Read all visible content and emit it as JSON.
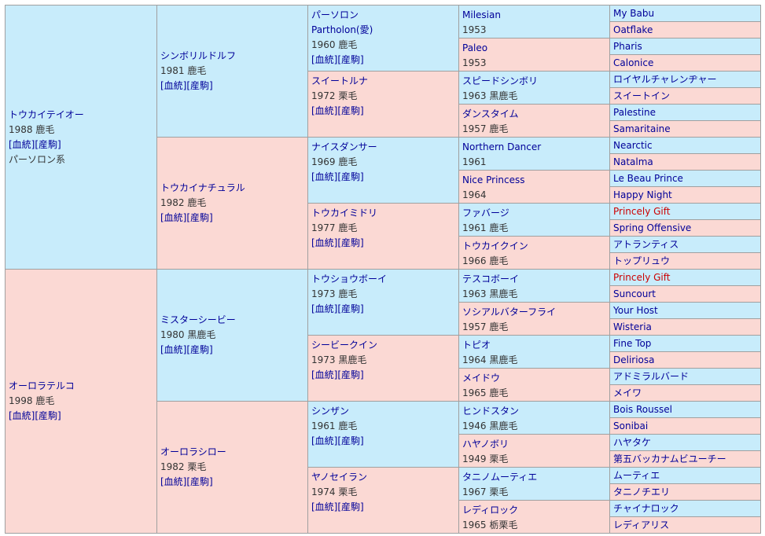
{
  "colors": {
    "male_bg": "#c8ecfb",
    "female_bg": "#fbd9d4",
    "link": "#000099",
    "highlight": "#cc0000",
    "border": "#a0a0a0"
  },
  "gen1": [
    {
      "name": "トウカイテイオー",
      "info": "1988 鹿毛",
      "links": "[血統][産駒]",
      "line": "パーソロン系",
      "sex": "m"
    },
    {
      "name": "オーロラテルコ",
      "info": "1998 鹿毛",
      "links": "[血統][産駒]",
      "sex": "f"
    }
  ],
  "gen2": [
    {
      "name": "シンボリルドルフ",
      "info": "1981 鹿毛",
      "links": "[血統][産駒]",
      "sex": "m"
    },
    {
      "name": "トウカイナチュラル",
      "info": "1982 鹿毛",
      "links": "[血統][産駒]",
      "sex": "f"
    },
    {
      "name": "ミスターシービー",
      "info": "1980 黒鹿毛",
      "links": "[血統][産駒]",
      "sex": "m"
    },
    {
      "name": "オーロラシロー",
      "info": "1982 栗毛",
      "links": "[血統][産駒]",
      "sex": "f"
    }
  ],
  "gen3": [
    {
      "name": "パーソロン",
      "alt": "Partholon(愛)",
      "info": "1960 鹿毛",
      "links": "[血統][産駒]",
      "sex": "m"
    },
    {
      "name": "スイートルナ",
      "info": "1972 栗毛",
      "links": "[血統][産駒]",
      "sex": "f"
    },
    {
      "name": "ナイスダンサー",
      "info": "1969 鹿毛",
      "links": "[血統][産駒]",
      "sex": "m"
    },
    {
      "name": "トウカイミドリ",
      "info": "1977 鹿毛",
      "links": "[血統][産駒]",
      "sex": "f"
    },
    {
      "name": "トウショウボーイ",
      "info": "1973 鹿毛",
      "links": "[血統][産駒]",
      "sex": "m"
    },
    {
      "name": "シービークイン",
      "info": "1973 黒鹿毛",
      "links": "[血統][産駒]",
      "sex": "f"
    },
    {
      "name": "シンザン",
      "info": "1961 鹿毛",
      "links": "[血統][産駒]",
      "sex": "m"
    },
    {
      "name": "ヤノセイラン",
      "info": "1974 栗毛",
      "links": "[血統][産駒]",
      "sex": "f"
    }
  ],
  "gen4": [
    {
      "name": "Milesian",
      "info": "1953",
      "sex": "m"
    },
    {
      "name": "Paleo",
      "info": "1953",
      "sex": "f"
    },
    {
      "name": "スピードシンボリ",
      "info": "1963 黒鹿毛",
      "sex": "m"
    },
    {
      "name": "ダンスタイム",
      "info": "1957 鹿毛",
      "sex": "f"
    },
    {
      "name": "Northern Dancer",
      "info": "1961",
      "sex": "m"
    },
    {
      "name": "Nice Princess",
      "info": "1964",
      "sex": "f"
    },
    {
      "name": "ファバージ",
      "info": "1961 鹿毛",
      "sex": "m"
    },
    {
      "name": "トウカイクイン",
      "info": "1966 鹿毛",
      "sex": "f"
    },
    {
      "name": "テスコボーイ",
      "info": "1963 黒鹿毛",
      "sex": "m"
    },
    {
      "name": "ソシアルバターフライ",
      "info": "1957 鹿毛",
      "sex": "f"
    },
    {
      "name": "トピオ",
      "info": "1964 黒鹿毛",
      "sex": "m"
    },
    {
      "name": "メイドウ",
      "info": "1965 鹿毛",
      "sex": "f"
    },
    {
      "name": "ヒンドスタン",
      "info": "1946 黒鹿毛",
      "sex": "m"
    },
    {
      "name": "ハヤノボリ",
      "info": "1949 栗毛",
      "sex": "f"
    },
    {
      "name": "タニノムーティエ",
      "info": "1967 栗毛",
      "sex": "m"
    },
    {
      "name": "レディロック",
      "info": "1965 栃栗毛",
      "sex": "f"
    }
  ],
  "gen5": [
    {
      "name": "My Babu",
      "sex": "m"
    },
    {
      "name": "Oatflake",
      "sex": "f"
    },
    {
      "name": "Pharis",
      "sex": "m"
    },
    {
      "name": "Calonice",
      "sex": "f"
    },
    {
      "name": "ロイヤルチャレンヂャー",
      "sex": "m"
    },
    {
      "name": "スイートイン",
      "sex": "f"
    },
    {
      "name": "Palestine",
      "sex": "m"
    },
    {
      "name": "Samaritaine",
      "sex": "f"
    },
    {
      "name": "Nearctic",
      "sex": "m"
    },
    {
      "name": "Natalma",
      "sex": "f"
    },
    {
      "name": "Le Beau Prince",
      "sex": "m"
    },
    {
      "name": "Happy Night",
      "sex": "f"
    },
    {
      "name": "Princely Gift",
      "sex": "m",
      "highlight": true
    },
    {
      "name": "Spring Offensive",
      "sex": "f"
    },
    {
      "name": "アトランティス",
      "sex": "m"
    },
    {
      "name": "トップリュウ",
      "sex": "f"
    },
    {
      "name": "Princely Gift",
      "sex": "m",
      "highlight": true
    },
    {
      "name": "Suncourt",
      "sex": "f"
    },
    {
      "name": "Your Host",
      "sex": "m"
    },
    {
      "name": "Wisteria",
      "sex": "f"
    },
    {
      "name": "Fine Top",
      "sex": "m"
    },
    {
      "name": "Deliriosa",
      "sex": "f"
    },
    {
      "name": "アドミラルバード",
      "sex": "m"
    },
    {
      "name": "メイワ",
      "sex": "f"
    },
    {
      "name": "Bois Roussel",
      "sex": "m"
    },
    {
      "name": "Sonibai",
      "sex": "f"
    },
    {
      "name": "ハヤタケ",
      "sex": "m"
    },
    {
      "name": "第五バッカナムビユーチー",
      "sex": "f"
    },
    {
      "name": "ムーティエ",
      "sex": "m"
    },
    {
      "name": "タニノチエリ",
      "sex": "f"
    },
    {
      "name": "チャイナロック",
      "sex": "m"
    },
    {
      "name": "レディアリス",
      "sex": "f"
    }
  ]
}
